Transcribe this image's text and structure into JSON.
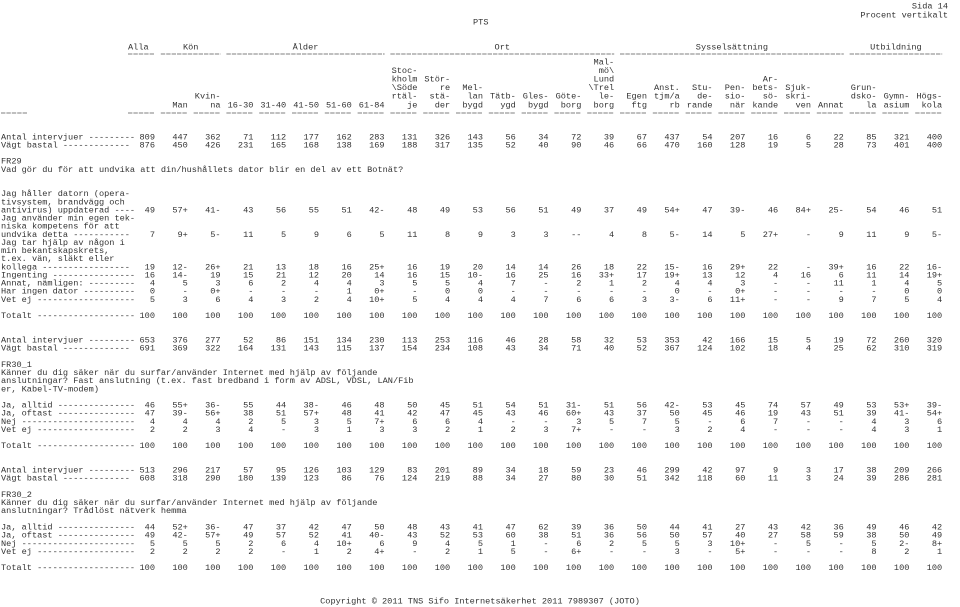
{
  "header": {
    "page": "Sida 14",
    "mode": "Procent vertikalt",
    "client": "PTS"
  },
  "groups": [
    "Alla",
    "Kön",
    "Ålder",
    "Ort",
    "Sysselsättning",
    "Utbildning"
  ],
  "columns": [
    [],
    [
      "Man"
    ],
    [
      "Kvin-",
      "na"
    ],
    [
      "16-30"
    ],
    [
      "31-40"
    ],
    [
      "41-50"
    ],
    [
      "51-60"
    ],
    [
      "61-84"
    ],
    [
      "Stoc-",
      "kholm",
      "\\Söde",
      "rtäl-",
      "je"
    ],
    [
      "Stör-",
      "re",
      "stä-",
      "der"
    ],
    [
      "Mel-",
      "lan",
      "bygd"
    ],
    [
      "Tätb-",
      "ygd"
    ],
    [
      "Gles-",
      "bygd"
    ],
    [
      "Göte-",
      "borg"
    ],
    [
      "Mal-",
      "mö\\",
      "Lund",
      "\\Trel",
      "le-",
      "borg"
    ],
    [
      "Egen",
      "ftg"
    ],
    [
      "Anst.",
      "tjm/a",
      "rb"
    ],
    [
      "Stu-",
      "de-",
      "rande"
    ],
    [
      "Pen-",
      "sio-",
      "när"
    ],
    [
      "Ar-",
      "bets-",
      "sö-",
      "kande"
    ],
    [
      "Sjuk-",
      "skri-",
      "ven"
    ],
    [
      "Annat"
    ],
    [
      "Grun-",
      "dsko-",
      "la"
    ],
    [
      "Gymn-",
      "asium"
    ],
    [
      "Högs-",
      "kola"
    ]
  ],
  "sections": [
    {
      "bases": [
        {
          "label": "Antal intervjuer ---------",
          "values": [
            "809",
            "447",
            "362",
            "71",
            "112",
            "177",
            "162",
            "283",
            "131",
            "326",
            "143",
            "56",
            "34",
            "72",
            "39",
            "67",
            "437",
            "54",
            "207",
            "16",
            "6",
            "22",
            "85",
            "321",
            "400"
          ]
        },
        {
          "label": "Vägt bastal -------------",
          "values": [
            "876",
            "450",
            "426",
            "231",
            "165",
            "168",
            "138",
            "169",
            "188",
            "317",
            "135",
            "52",
            "40",
            "90",
            "46",
            "66",
            "470",
            "160",
            "128",
            "19",
            "5",
            "28",
            "73",
            "401",
            "400"
          ]
        }
      ],
      "question": {
        "id": "FR29",
        "text": [
          "Vad gör du för att undvika att din/hushållets dator blir en del av ett Botnät?"
        ]
      },
      "rows": [
        {
          "label": [
            "Jag håller datorn (opera-",
            "tivsystem, brandvägg och",
            "antivirus) uppdaterad ----"
          ],
          "values": [
            "49",
            "57+",
            "41-",
            "43",
            "56",
            "55",
            "51",
            "42-",
            "48",
            "49",
            "53",
            "56",
            "51",
            "49",
            "37",
            "49",
            "54+",
            "47",
            "39-",
            "46",
            "84+",
            "25-",
            "54",
            "46",
            "51"
          ]
        },
        {
          "label": [
            "Jag använder min egen tek-",
            "niska kompetens för att",
            "undvika detta -----------"
          ],
          "values": [
            "7",
            "9+",
            "5-",
            "11",
            "5",
            "9",
            "6",
            "5",
            "11",
            "8",
            "9",
            "3",
            "3",
            "--",
            "4",
            "8",
            "5-",
            "14",
            "5",
            "27+",
            "-",
            "9",
            "11",
            "9",
            "5-"
          ]
        },
        {
          "label": [
            "Jag tar hjälp av någon i",
            "min bekantskapskrets,",
            "t.ex. vän, släkt eller",
            "kollega -----------------"
          ],
          "values": [
            "19",
            "12-",
            "26+",
            "21",
            "13",
            "18",
            "16",
            "25+",
            "16",
            "19",
            "20",
            "14",
            "14",
            "26",
            "18",
            "22",
            "15-",
            "16",
            "29+",
            "22",
            "-",
            "39+",
            "16",
            "22",
            "16-"
          ]
        },
        {
          "label": [
            "Ingenting ----------------"
          ],
          "values": [
            "16",
            "14-",
            "19",
            "15",
            "21",
            "12",
            "20",
            "14",
            "16",
            "15",
            "10-",
            "16",
            "25",
            "16",
            "33+",
            "17",
            "19+",
            "13",
            "12",
            "4",
            "16",
            "6",
            "11",
            "14",
            "19+"
          ]
        },
        {
          "label": [
            "Annat, nämligen: ---------"
          ],
          "values": [
            "4",
            "5",
            "3",
            "6",
            "2",
            "4",
            "4",
            "3",
            "5",
            "5",
            "4",
            "7",
            "-",
            "2",
            "1",
            "2",
            "4",
            "4",
            "3",
            "-",
            "-",
            "11",
            "1",
            "4",
            "5"
          ]
        },
        {
          "label": [
            "Har ingen dator ----------"
          ],
          "values": [
            "0",
            "-",
            "0+",
            "-",
            "-",
            "-",
            "1",
            "0+",
            "-",
            "0",
            "0",
            "-",
            "-",
            "-",
            "-",
            "-",
            "0",
            "-",
            "0+",
            "-",
            "-",
            "-",
            "-",
            "0",
            "0"
          ]
        },
        {
          "label": [
            "Vet ej -------------------"
          ],
          "values": [
            "5",
            "3",
            "6",
            "4",
            "3",
            "2",
            "4",
            "10+",
            "5",
            "4",
            "4",
            "4",
            "7",
            "6",
            "6",
            "3",
            "3-",
            "6",
            "11+",
            "-",
            "-",
            "9",
            "7",
            "5",
            "4"
          ]
        }
      ],
      "total": {
        "label": "Totalt -------------------",
        "values": [
          "100",
          "100",
          "100",
          "100",
          "100",
          "100",
          "100",
          "100",
          "100",
          "100",
          "100",
          "100",
          "100",
          "100",
          "100",
          "100",
          "100",
          "100",
          "100",
          "100",
          "100",
          "100",
          "100",
          "100",
          "100"
        ]
      }
    },
    {
      "bases": [
        {
          "label": "Antal intervjuer ---------",
          "values": [
            "653",
            "376",
            "277",
            "52",
            "86",
            "151",
            "134",
            "230",
            "113",
            "253",
            "116",
            "46",
            "28",
            "58",
            "32",
            "53",
            "353",
            "42",
            "166",
            "15",
            "5",
            "19",
            "72",
            "260",
            "320"
          ]
        },
        {
          "label": "Vägt bastal -------------",
          "values": [
            "691",
            "369",
            "322",
            "164",
            "131",
            "143",
            "115",
            "137",
            "154",
            "234",
            "108",
            "43",
            "34",
            "71",
            "40",
            "52",
            "367",
            "124",
            "102",
            "18",
            "4",
            "25",
            "62",
            "310",
            "319"
          ]
        }
      ],
      "question": {
        "id": "FR30_1",
        "text": [
          "Känner du dig säker när du surfar/använder Internet med hjälp av följande",
          "anslutningar? Fast anslutning (t.ex. fast bredband i form av ADSL, VDSL, LAN/Fib",
          "er, Kabel-TV-modem)"
        ]
      },
      "rows": [
        {
          "label": [
            "Ja, alltid ---------------"
          ],
          "values": [
            "46",
            "55+",
            "36-",
            "55",
            "44",
            "38-",
            "46",
            "48",
            "50",
            "45",
            "51",
            "54",
            "51",
            "31-",
            "51",
            "56",
            "42-",
            "53",
            "45",
            "74",
            "57",
            "49",
            "53",
            "53+",
            "39-"
          ]
        },
        {
          "label": [
            "Ja, oftast ---------------"
          ],
          "values": [
            "47",
            "39-",
            "56+",
            "38",
            "51",
            "57+",
            "48",
            "41",
            "42",
            "47",
            "45",
            "43",
            "46",
            "60+",
            "43",
            "37",
            "50",
            "45",
            "46",
            "19",
            "43",
            "51",
            "39",
            "41-",
            "54+"
          ]
        },
        {
          "label": [
            "Nej ----------------------"
          ],
          "values": [
            "4",
            "4",
            "4",
            "2",
            "5",
            "3",
            "5",
            "7+",
            "6",
            "6",
            "4",
            "-",
            "-",
            "3",
            "5",
            "7",
            "5",
            "-",
            "6",
            "7",
            "-",
            "-",
            "4",
            "3",
            "6"
          ]
        },
        {
          "label": [
            "Vet ej -------------------"
          ],
          "values": [
            "2",
            "2",
            "3",
            "4",
            "-",
            "3",
            "1",
            "3",
            "3",
            "2",
            "1",
            "2",
            "3",
            "7+",
            "-",
            "-",
            "3",
            "2",
            "4",
            "-",
            "-",
            "-",
            "4",
            "3",
            "1"
          ]
        }
      ],
      "total": {
        "label": "Totalt -------------------",
        "values": [
          "100",
          "100",
          "100",
          "100",
          "100",
          "100",
          "100",
          "100",
          "100",
          "100",
          "100",
          "100",
          "100",
          "100",
          "100",
          "100",
          "100",
          "100",
          "100",
          "100",
          "100",
          "100",
          "100",
          "100",
          "100"
        ]
      }
    },
    {
      "bases": [
        {
          "label": "Antal intervjuer ---------",
          "values": [
            "513",
            "296",
            "217",
            "57",
            "95",
            "126",
            "103",
            "129",
            "83",
            "201",
            "89",
            "34",
            "18",
            "59",
            "23",
            "46",
            "299",
            "42",
            "97",
            "9",
            "3",
            "17",
            "38",
            "209",
            "266"
          ]
        },
        {
          "label": "Vägt bastal -------------",
          "values": [
            "608",
            "318",
            "290",
            "180",
            "139",
            "123",
            "86",
            "76",
            "124",
            "219",
            "88",
            "34",
            "27",
            "80",
            "30",
            "51",
            "342",
            "118",
            "60",
            "11",
            "3",
            "24",
            "39",
            "286",
            "281"
          ]
        }
      ],
      "question": {
        "id": "FR30_2",
        "text": [
          "Känner du dig säker när du surfar/använder Internet med hjälp av följande",
          "anslutningar? Trådlöst nätverk hemma"
        ]
      },
      "rows": [
        {
          "label": [
            "Ja, alltid ---------------"
          ],
          "values": [
            "44",
            "52+",
            "36-",
            "47",
            "37",
            "42",
            "47",
            "50",
            "48",
            "43",
            "41",
            "47",
            "62",
            "39",
            "36",
            "50",
            "44",
            "41",
            "27",
            "43",
            "42",
            "36",
            "49",
            "46",
            "42"
          ]
        },
        {
          "label": [
            "Ja, oftast ---------------"
          ],
          "values": [
            "49",
            "42-",
            "57+",
            "49",
            "57",
            "52",
            "41",
            "40-",
            "43",
            "52",
            "53",
            "60",
            "38",
            "51",
            "36",
            "56",
            "50",
            "57",
            "40",
            "27",
            "58",
            "59",
            "38",
            "50",
            "49"
          ]
        },
        {
          "label": [
            "Nej ----------------------"
          ],
          "values": [
            "5",
            "5",
            "5",
            "2",
            "6",
            "4",
            "10+",
            "6",
            "9",
            "4",
            "5",
            "1",
            "-",
            "6",
            "2",
            "5",
            "5",
            "3",
            "10+",
            "-",
            "5",
            "-",
            "5",
            "2-",
            "8+"
          ]
        },
        {
          "label": [
            "Vet ej -------------------"
          ],
          "values": [
            "2",
            "2",
            "2",
            "2",
            "-",
            "1",
            "2",
            "4+",
            "-",
            "2",
            "1",
            "5",
            "-",
            "6+",
            "-",
            "-",
            "3",
            "-",
            "5+",
            "-",
            "-",
            "-",
            "8",
            "2",
            "1"
          ]
        }
      ],
      "total": {
        "label": "Totalt -------------------",
        "values": [
          "100",
          "100",
          "100",
          "100",
          "100",
          "100",
          "100",
          "100",
          "100",
          "100",
          "100",
          "100",
          "100",
          "100",
          "100",
          "100",
          "100",
          "100",
          "100",
          "100",
          "100",
          "100",
          "100",
          "100",
          "100"
        ]
      }
    }
  ],
  "footer": "Copyright © 2011 TNS Sifo Internetsäkerhet 2011 7989307 (JOTO)"
}
